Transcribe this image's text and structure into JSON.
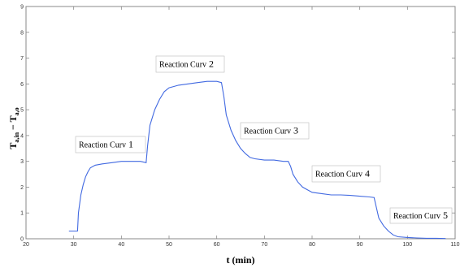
{
  "colors": {
    "line": "#4169e1",
    "axis": "#888888",
    "text": "#000000"
  },
  "chart_data": {
    "type": "line",
    "title": "",
    "xlabel": "t (min)",
    "ylabel_main": "T",
    "ylabel_sub1": "a,in",
    "ylabel_mid": " − T",
    "ylabel_sub2": "a,o",
    "xlim": [
      20,
      110
    ],
    "ylim": [
      0,
      9
    ],
    "x_ticks": [
      20,
      30,
      40,
      50,
      60,
      70,
      80,
      90,
      100,
      110
    ],
    "y_ticks": [
      0,
      1,
      2,
      3,
      4,
      5,
      6,
      7,
      8,
      9
    ],
    "grid": false,
    "series": [
      {
        "x": [
          29.0,
          30.8,
          31.0,
          31.5,
          32.0,
          32.5,
          33.0,
          33.5,
          34.5,
          36.0,
          38.0,
          40.0,
          42.0,
          44.0,
          45.2,
          45.5,
          46.0,
          47.0,
          48.0,
          49.0,
          50.0,
          51.0,
          52.0,
          54.0,
          56.0,
          58.0,
          60.0,
          61.0,
          61.5,
          62.0,
          63.0,
          64.0,
          65.0,
          66.0,
          67.0,
          68.0,
          70.0,
          72.0,
          74.0,
          75.0,
          75.5,
          76.0,
          77.0,
          78.0,
          79.0,
          80.0,
          82.0,
          84.0,
          86.0,
          88.0,
          90.0,
          92.0,
          93.0,
          93.5,
          94.0,
          95.0,
          96.0,
          97.0,
          98.0,
          100.0,
          102.0,
          104.0,
          106.0,
          108.0
        ],
        "y": [
          0.3,
          0.3,
          1.0,
          1.7,
          2.1,
          2.4,
          2.6,
          2.75,
          2.85,
          2.9,
          2.95,
          3.0,
          3.0,
          3.0,
          2.95,
          3.6,
          4.4,
          5.0,
          5.4,
          5.7,
          5.85,
          5.9,
          5.95,
          6.0,
          6.05,
          6.1,
          6.1,
          6.05,
          5.5,
          4.8,
          4.2,
          3.8,
          3.5,
          3.3,
          3.15,
          3.1,
          3.05,
          3.05,
          3.0,
          3.0,
          2.8,
          2.5,
          2.2,
          2.0,
          1.9,
          1.8,
          1.75,
          1.7,
          1.7,
          1.68,
          1.65,
          1.62,
          1.6,
          1.2,
          0.8,
          0.5,
          0.3,
          0.15,
          0.08,
          0.05,
          0.03,
          0.02,
          0.02,
          0.01
        ]
      }
    ],
    "annotations": [
      {
        "label": "Reaction Curv",
        "num": "1"
      },
      {
        "label": "Reaction Curv",
        "num": "2"
      },
      {
        "label": "Reaction Curv",
        "num": "3"
      },
      {
        "label": "Reaction Curv",
        "num": "4"
      },
      {
        "label": "Reaction Curv",
        "num": "5"
      }
    ]
  }
}
